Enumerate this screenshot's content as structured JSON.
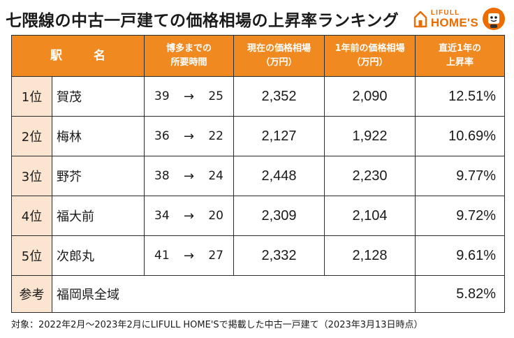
{
  "title": "七隈線の中古一戸建ての価格相場の上昇率ランキング",
  "logo": {
    "line1": "LIFULL",
    "line2": "HOME'S",
    "brand_color": "#ed6c00",
    "icons": [
      "house-icon",
      "mascot-icon"
    ]
  },
  "colors": {
    "header_bg": "#f08a20",
    "rank_bg": "#fbe4d0"
  },
  "table": {
    "headers": {
      "station": "駅　名",
      "travel_line1": "博多までの",
      "travel_line2": "所要時間",
      "current_line1": "現在の価格相場",
      "current_line2": "（万円）",
      "prev_line1": "1年前の価格相場",
      "prev_line2": "（万円）",
      "rate_line1": "直近1年の",
      "rate_line2": "上昇率"
    },
    "rows": [
      {
        "rank": "1位",
        "station": "賀茂",
        "time_before": "39",
        "arrow": "→",
        "time_after": "25",
        "current": "2,352",
        "previous": "2,090",
        "rate": "12.51%"
      },
      {
        "rank": "2位",
        "station": "梅林",
        "time_before": "36",
        "arrow": "→",
        "time_after": "22",
        "current": "2,127",
        "previous": "1,922",
        "rate": "10.69%"
      },
      {
        "rank": "3位",
        "station": "野芥",
        "time_before": "38",
        "arrow": "→",
        "time_after": "24",
        "current": "2,448",
        "previous": "2,230",
        "rate": "9.77%"
      },
      {
        "rank": "4位",
        "station": "福大前",
        "time_before": "34",
        "arrow": "→",
        "time_after": "20",
        "current": "2,309",
        "previous": "2,104",
        "rate": "9.72%"
      },
      {
        "rank": "5位",
        "station": "次郎丸",
        "time_before": "41",
        "arrow": "→",
        "time_after": "27",
        "current": "2,332",
        "previous": "2,128",
        "rate": "9.61%"
      }
    ],
    "reference": {
      "rank": "参考",
      "station": "福岡県全域",
      "rate": "5.82%"
    }
  },
  "footnote": "対象：2022年2月～2023年2月にLIFULL HOME'Sで掲載した中古一戸建て（2023年3月13日時点）"
}
